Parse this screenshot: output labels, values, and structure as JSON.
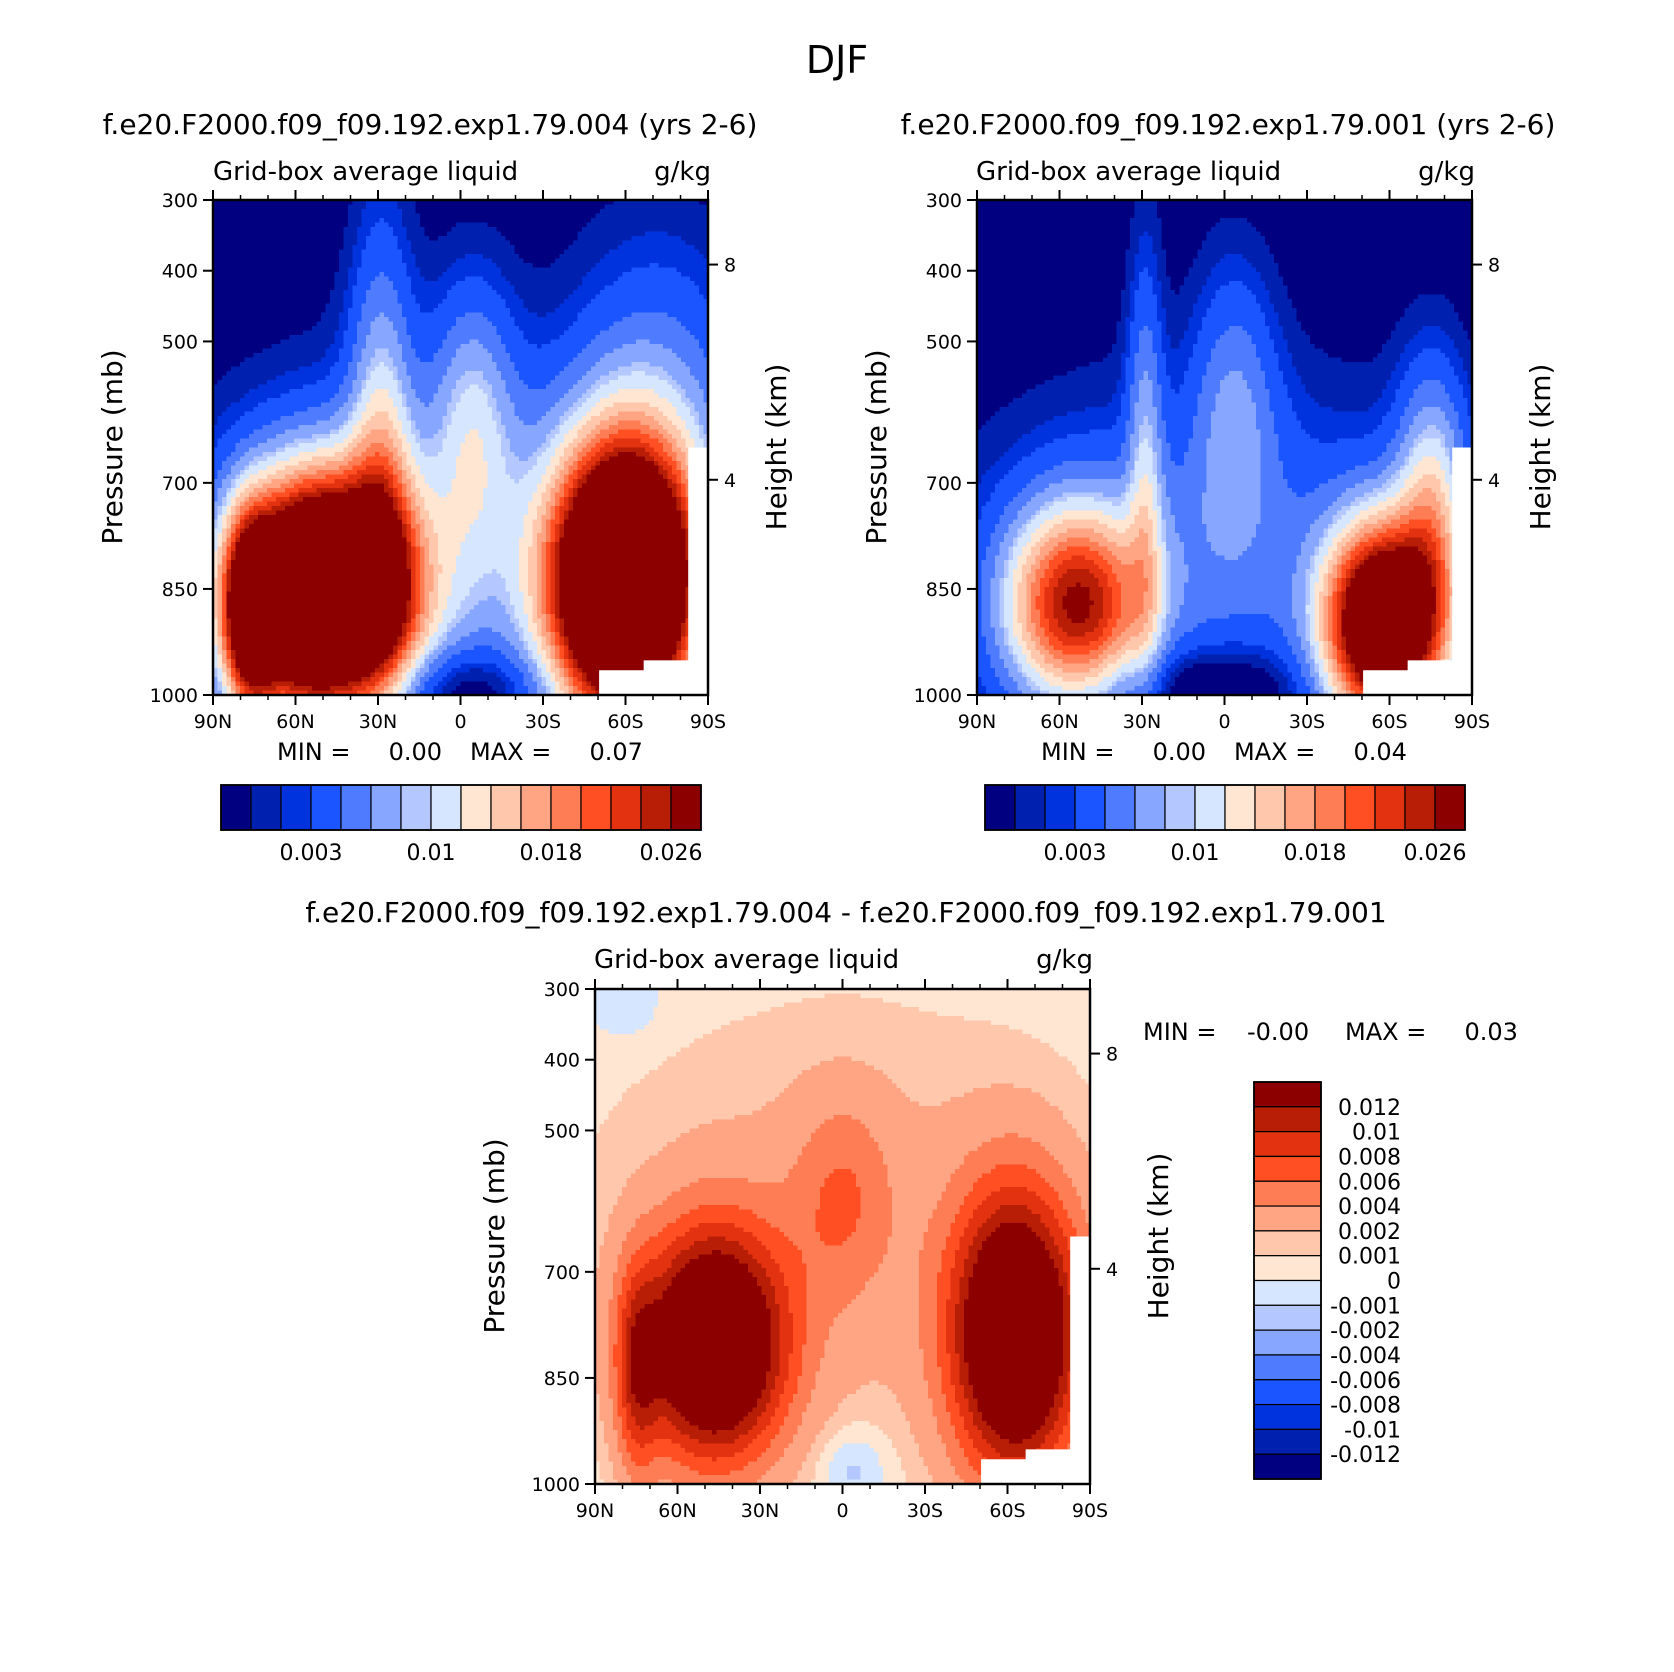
{
  "figure_title": "DJF",
  "colors": {
    "abs_scale": [
      "#000080",
      "#0021b0",
      "#0033dd",
      "#1a55ff",
      "#4f7cff",
      "#86a6ff",
      "#b4c8ff",
      "#d6e6ff",
      "#ffe6d2",
      "#ffc7ac",
      "#ffa583",
      "#ff7d54",
      "#ff4f23",
      "#e23210",
      "#b81e06",
      "#8c0000"
    ],
    "diff_scale": [
      "#8c0000",
      "#b81e06",
      "#e23210",
      "#ff4f23",
      "#ff7d54",
      "#ffa583",
      "#ffc7ac",
      "#ffe6d2",
      "#d6e6ff",
      "#b4c8ff",
      "#86a6ff",
      "#4f7cff",
      "#1a55ff",
      "#0033dd",
      "#0021b0",
      "#000080"
    ]
  },
  "chart_data": [
    {
      "type": "heatmap",
      "id": "panel1",
      "title": "f.e20.F2000.f09_f09.192.exp1.79.004 (yrs 2-6)",
      "left_label": "Grid-box average liquid",
      "right_label": "g/kg",
      "ylabel": "Pressure (mb)",
      "y2label": "Height (km)",
      "x_ticks": [
        "90N",
        "60N",
        "30N",
        "0",
        "30S",
        "60S",
        "90S"
      ],
      "y_ticks": [
        "300",
        "400",
        "500",
        "700",
        "850",
        "1000"
      ],
      "y_values": [
        300,
        400,
        500,
        700,
        850,
        1000
      ],
      "ylim": [
        300,
        1000
      ],
      "y2_ticks": [
        "8",
        "4"
      ],
      "y2_values": [
        8,
        4
      ],
      "min_text": "MIN =     0.00",
      "max_text": "MAX =     0.07",
      "colorbar_labels": [
        "0.003",
        "0.01",
        "0.018",
        "0.026"
      ],
      "colorbar_label_index": [
        3,
        7,
        11,
        15
      ],
      "field": "ctrl"
    },
    {
      "type": "heatmap",
      "id": "panel2",
      "title": "f.e20.F2000.f09_f09.192.exp1.79.001 (yrs 2-6)",
      "left_label": "Grid-box average liquid",
      "right_label": "g/kg",
      "ylabel": "Pressure (mb)",
      "y2label": "Height (km)",
      "x_ticks": [
        "90N",
        "60N",
        "30N",
        "0",
        "30S",
        "60S",
        "90S"
      ],
      "y_ticks": [
        "300",
        "400",
        "500",
        "700",
        "850",
        "1000"
      ],
      "y_values": [
        300,
        400,
        500,
        700,
        850,
        1000
      ],
      "ylim": [
        300,
        1000
      ],
      "y2_ticks": [
        "8",
        "4"
      ],
      "y2_values": [
        8,
        4
      ],
      "min_text": "MIN =     0.00",
      "max_text": "MAX =     0.04",
      "colorbar_labels": [
        "0.003",
        "0.01",
        "0.018",
        "0.026"
      ],
      "colorbar_label_index": [
        3,
        7,
        11,
        15
      ],
      "field": "exp"
    },
    {
      "type": "heatmap",
      "id": "panel3",
      "title": "f.e20.F2000.f09_f09.192.exp1.79.004 - f.e20.F2000.f09_f09.192.exp1.79.001",
      "left_label": "Grid-box average liquid",
      "right_label": "g/kg",
      "ylabel": "Pressure (mb)",
      "y2label": "Height (km)",
      "x_ticks": [
        "90N",
        "60N",
        "30N",
        "0",
        "30S",
        "60S",
        "90S"
      ],
      "y_ticks": [
        "300",
        "400",
        "500",
        "700",
        "850",
        "1000"
      ],
      "y_values": [
        300,
        400,
        500,
        700,
        850,
        1000
      ],
      "ylim": [
        300,
        1000
      ],
      "y2_ticks": [
        "8",
        "4"
      ],
      "y2_values": [
        8,
        4
      ],
      "min_text": "MIN =    -0.00",
      "max_text": "MAX =     0.03",
      "colorbar_labels": [
        "0.012",
        "0.01",
        "0.008",
        "0.006",
        "0.004",
        "0.002",
        "0.001",
        "0",
        "-0.001",
        "-0.002",
        "-0.004",
        "-0.006",
        "-0.008",
        "-0.01",
        "-0.012"
      ],
      "field": "diff"
    }
  ]
}
